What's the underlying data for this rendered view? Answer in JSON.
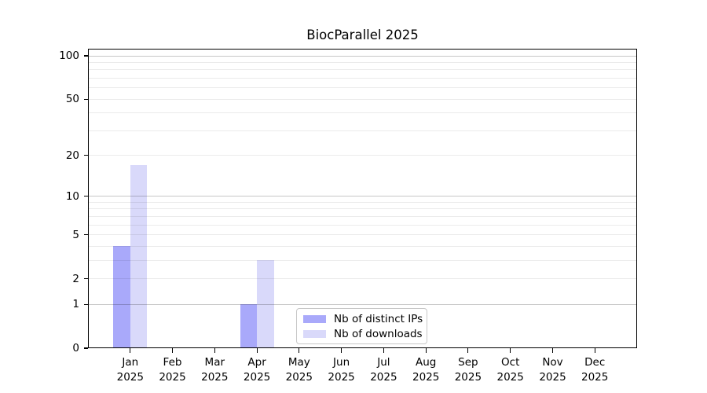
{
  "chart_data": {
    "type": "bar",
    "title": "BiocParallel 2025",
    "categories": [
      "Jan",
      "Feb",
      "Mar",
      "Apr",
      "May",
      "Jun",
      "Jul",
      "Aug",
      "Sep",
      "Oct",
      "Nov",
      "Dec"
    ],
    "year_label": "2025",
    "series": [
      {
        "name": "Nb of distinct IPs",
        "color": "#a9a9fa",
        "values": [
          4,
          0,
          0,
          1,
          0,
          0,
          0,
          0,
          0,
          0,
          0,
          0
        ]
      },
      {
        "name": "Nb of downloads",
        "color": "#d9d9fa",
        "values": [
          17,
          0,
          0,
          3,
          0,
          0,
          0,
          0,
          0,
          0,
          0,
          0
        ]
      }
    ],
    "yscale": "log10(1+x)",
    "ylim": [
      0,
      112
    ],
    "xlim": [
      -1,
      12
    ],
    "yticks_major": [
      0,
      1,
      2,
      5,
      10,
      20,
      50,
      100
    ],
    "yticks_minor": [
      3,
      4,
      6,
      7,
      8,
      9,
      30,
      40,
      60,
      70,
      80,
      90
    ],
    "bar_width_units": 0.4,
    "grid": "horizontal",
    "legend_position": "lower center",
    "colors": {
      "grid_pow10": "rgba(0,0,0,0.22)",
      "grid_light": "rgba(0,0,0,0.08)",
      "axis": "#000000",
      "background": "#ffffff"
    }
  }
}
